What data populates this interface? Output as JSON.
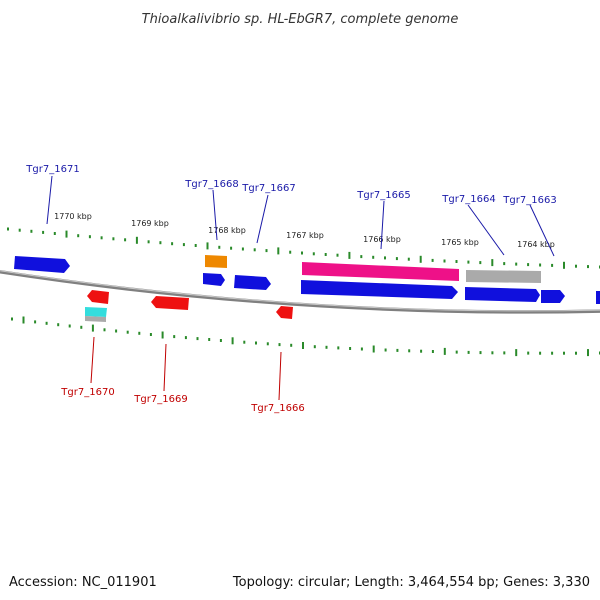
{
  "title": "Thioalkalivibrio sp. HL-EbGR7, complete genome",
  "footer": {
    "accession": "Accession: NC_011901",
    "summary": "Topology: circular; Length: 3,464,554 bp; Genes: 3,330"
  },
  "scale_labels": [
    "1770 kbp",
    "1769 kbp",
    "1768 kbp",
    "1767 kbp",
    "1766 kbp",
    "1765 kbp",
    "1764 kbp"
  ],
  "colors": {
    "forward_label": "#1a1aa8",
    "reverse_label": "#c00000",
    "backbone": "#808080",
    "tick": "#2a8a2a",
    "blue_gene": "#1010dd",
    "red_gene": "#ee1111",
    "magenta_gene": "#ee1188",
    "orange_gene": "#ee8800",
    "cyan_gene": "#33dddd",
    "gray_gene": "#aaaaaa"
  },
  "forward_labels": [
    "Tgr7_1671",
    "Tgr7_1668",
    "Tgr7_1667",
    "Tgr7_1665",
    "Tgr7_1664",
    "Tgr7_1663"
  ],
  "reverse_labels": [
    "Tgr7_1670",
    "Tgr7_1669",
    "Tgr7_1666"
  ]
}
